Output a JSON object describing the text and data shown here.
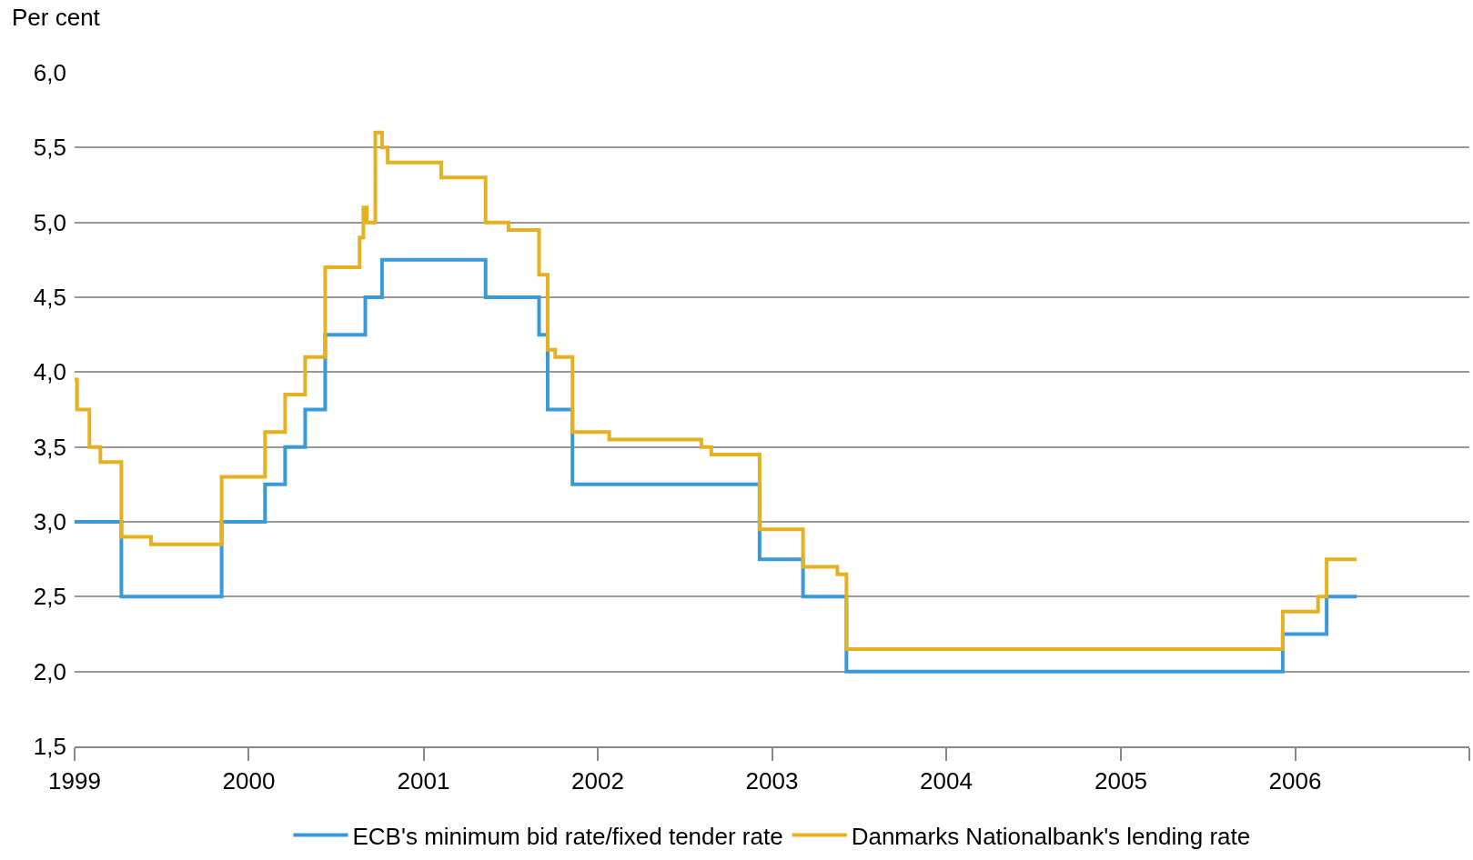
{
  "chart_data": {
    "type": "step",
    "ylabel": "Per cent",
    "ylim": [
      1.5,
      6.0
    ],
    "xlim": [
      "1999-01-01",
      "2007-01-01"
    ],
    "yticks": [
      {
        "value": 1.5,
        "label": "1,5"
      },
      {
        "value": 2.0,
        "label": "2,0"
      },
      {
        "value": 2.5,
        "label": "2,5"
      },
      {
        "value": 3.0,
        "label": "3,0"
      },
      {
        "value": 3.5,
        "label": "3,5"
      },
      {
        "value": 4.0,
        "label": "4,0"
      },
      {
        "value": 4.5,
        "label": "4,5"
      },
      {
        "value": 5.0,
        "label": "5,0"
      },
      {
        "value": 5.5,
        "label": "5,5"
      },
      {
        "value": 6.0,
        "label": "6,0"
      }
    ],
    "xticks": [
      {
        "value": "1999-01-01",
        "label": "1999"
      },
      {
        "value": "2000-01-01",
        "label": "2000"
      },
      {
        "value": "2001-01-01",
        "label": "2001"
      },
      {
        "value": "2002-01-01",
        "label": "2002"
      },
      {
        "value": "2003-01-01",
        "label": "2003"
      },
      {
        "value": "2004-01-01",
        "label": "2004"
      },
      {
        "value": "2005-01-01",
        "label": "2005"
      },
      {
        "value": "2006-01-01",
        "label": "2006"
      },
      {
        "value": "2007-01-01",
        "label": null
      }
    ],
    "grid": "y",
    "legend": "bottom",
    "line_style": "solid",
    "marker": "none",
    "series": [
      {
        "name": "ECB's minimum bid rate/fixed tender rate",
        "color": "#3a9ad9",
        "x": [
          "1999-01-01",
          "1999-04-09",
          "1999-11-05",
          "2000-02-04",
          "2000-03-17",
          "2000-04-28",
          "2000-06-09",
          "2000-09-01",
          "2000-10-06",
          "2001-05-11",
          "2001-08-31",
          "2001-09-18",
          "2001-11-09",
          "2002-12-06",
          "2003-03-07",
          "2003-06-06",
          "2005-12-06",
          "2006-03-08",
          "2006-05-10"
        ],
        "values": [
          3.0,
          2.5,
          3.0,
          3.25,
          3.5,
          3.75,
          4.25,
          4.5,
          4.75,
          4.5,
          4.25,
          3.75,
          3.25,
          2.75,
          2.5,
          2.0,
          2.25,
          2.5,
          2.5
        ]
      },
      {
        "name": "Danmarks Nationalbank's lending rate",
        "color": "#e5b120",
        "x": [
          "1999-01-01",
          "1999-01-06",
          "1999-02-01",
          "1999-02-24",
          "1999-04-09",
          "1999-06-10",
          "1999-11-05",
          "2000-02-04",
          "2000-03-17",
          "2000-04-28",
          "2000-06-09",
          "2000-08-20",
          "2000-08-28",
          "2000-09-04",
          "2000-09-22",
          "2000-10-06",
          "2000-10-18",
          "2001-02-07",
          "2001-05-11",
          "2001-06-28",
          "2001-08-31",
          "2001-09-18",
          "2001-10-04",
          "2001-11-09",
          "2002-01-25",
          "2002-08-06",
          "2002-08-27",
          "2002-12-06",
          "2003-03-07",
          "2003-05-18",
          "2003-06-06",
          "2005-12-06",
          "2006-02-18",
          "2006-03-08",
          "2006-05-10"
        ],
        "values": [
          3.95,
          3.75,
          3.5,
          3.4,
          2.9,
          2.85,
          3.3,
          3.6,
          3.85,
          4.1,
          4.7,
          4.9,
          5.1,
          5.0,
          5.6,
          5.5,
          5.4,
          5.3,
          5.0,
          4.95,
          4.65,
          4.15,
          4.1,
          3.6,
          3.55,
          3.5,
          3.45,
          2.95,
          2.7,
          2.65,
          2.15,
          2.4,
          2.5,
          2.75,
          2.75
        ]
      }
    ]
  }
}
